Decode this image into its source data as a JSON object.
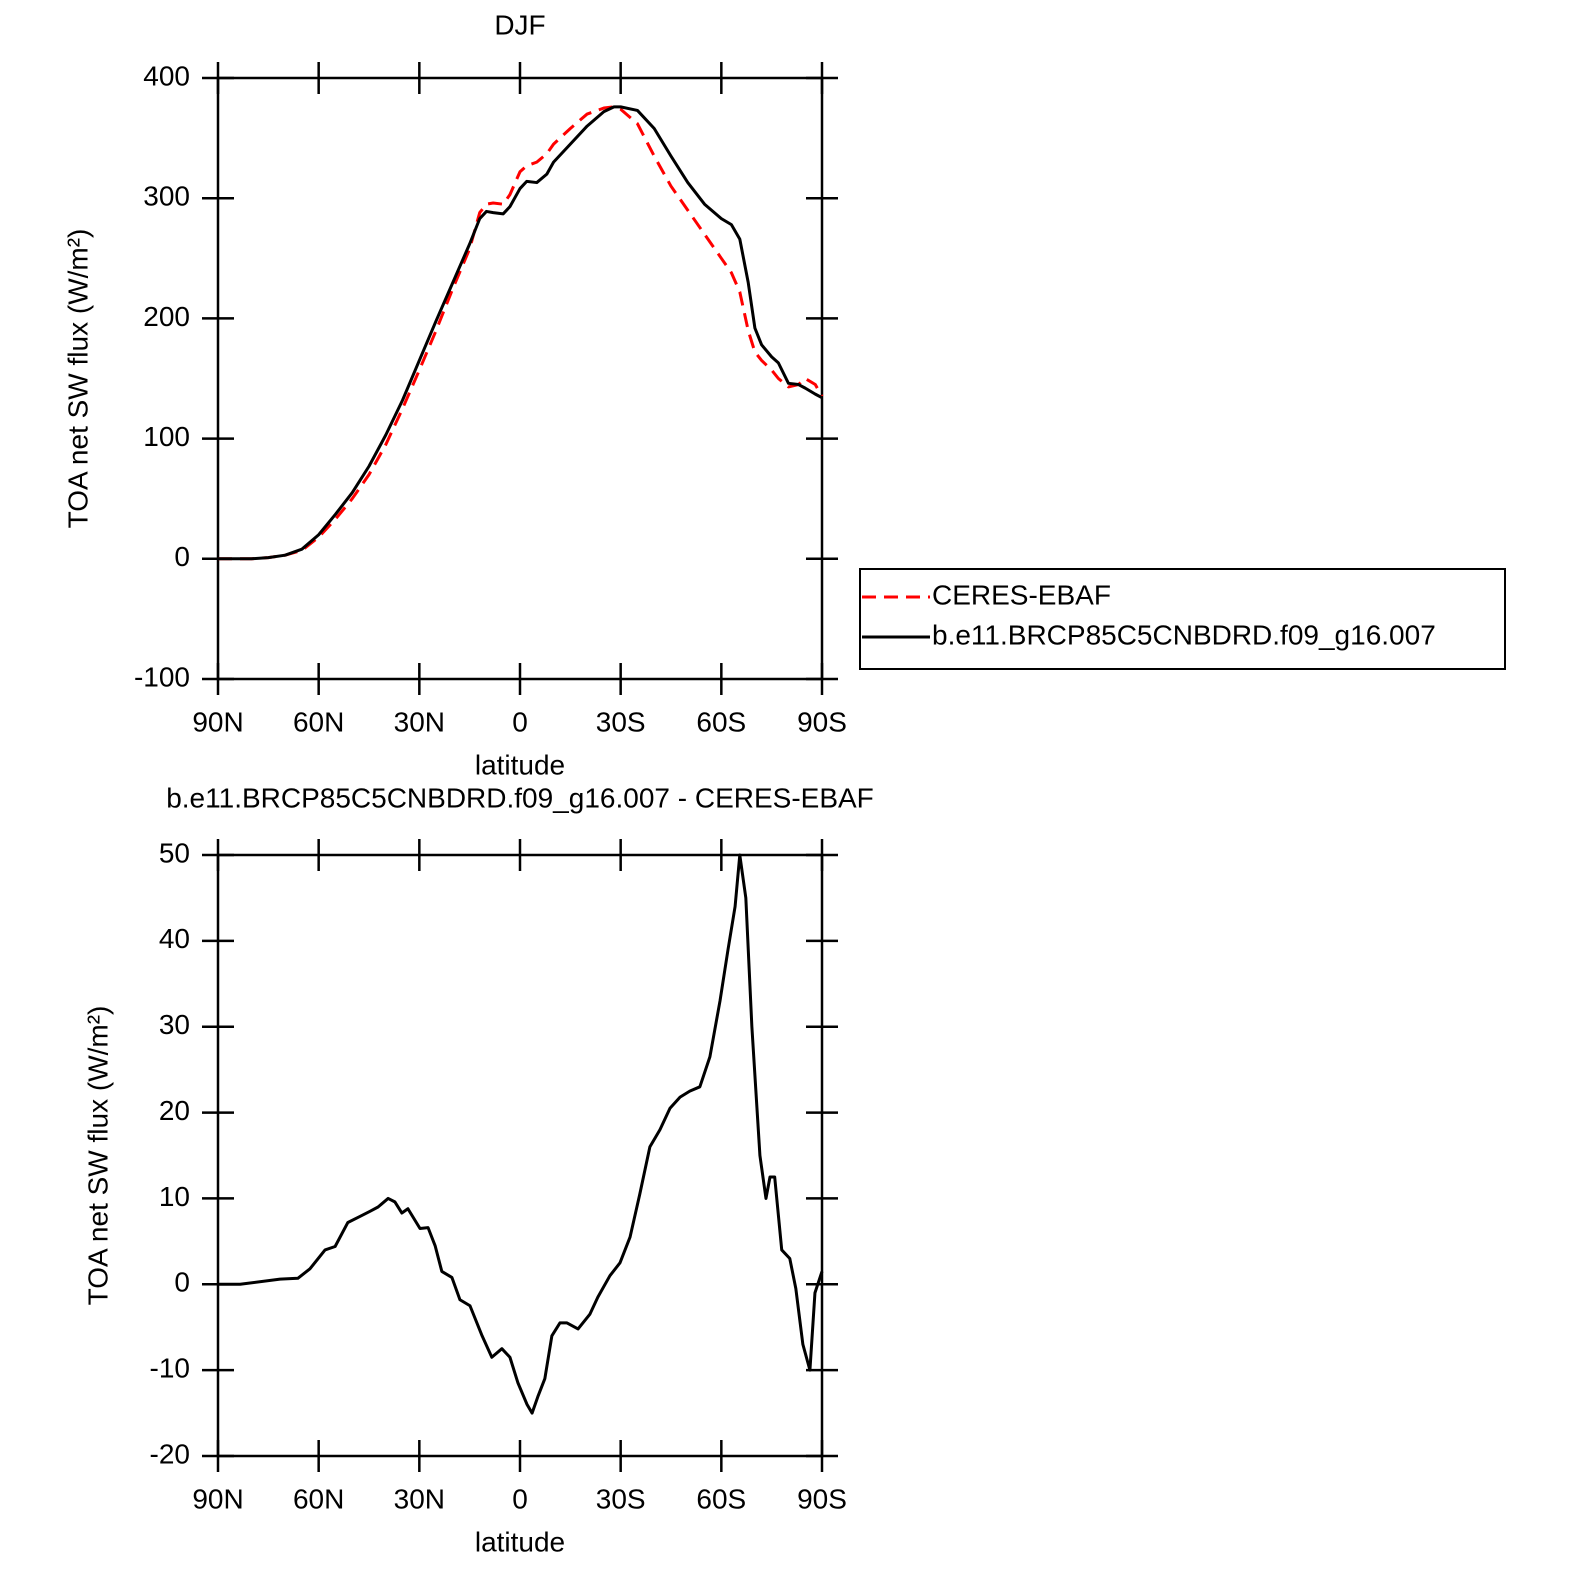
{
  "chart_data": [
    {
      "type": "line",
      "title": "DJF",
      "xlabel": "latitude",
      "ylabel": "TOA net SW flux (W/m²)",
      "x": [
        90,
        85,
        80,
        75,
        70,
        65,
        60,
        55,
        50,
        45,
        40,
        35,
        30,
        25,
        20,
        15,
        12,
        10,
        8,
        5,
        3,
        0,
        -2,
        -5,
        -8,
        -10,
        -15,
        -20,
        -25,
        -28,
        -30,
        -35,
        -40,
        -45,
        -50,
        -55,
        -60,
        -63,
        -65.5,
        -68,
        -70,
        -72,
        -75,
        -77,
        -80,
        -83,
        -85,
        -88,
        -90
      ],
      "series": [
        {
          "name": "CERES-EBAF",
          "color": "#ff0000",
          "dashed": true,
          "values": [
            0,
            0,
            0,
            1,
            3,
            7,
            18,
            33,
            50,
            70,
            95,
            125,
            157,
            190,
            225,
            258,
            288,
            295,
            296,
            295,
            303,
            322,
            327,
            330,
            337,
            345,
            358,
            370,
            375,
            376,
            374,
            362,
            335,
            310,
            290,
            270,
            250,
            238,
            222,
            190,
            172,
            165,
            157,
            150,
            143,
            145,
            150,
            145,
            135
          ]
        },
        {
          "name": "b.e11.BRCP85C5CNBDRD.f09_g16.007",
          "color": "#000000",
          "dashed": false,
          "values": [
            0,
            0,
            0,
            1,
            3,
            8,
            20,
            37,
            55,
            77,
            103,
            132,
            165,
            198,
            230,
            262,
            283,
            289,
            288,
            287,
            293,
            308,
            314,
            313,
            320,
            330,
            345,
            360,
            372,
            376,
            376,
            373,
            358,
            335,
            313,
            295,
            283,
            278,
            266,
            230,
            192,
            178,
            168,
            163,
            146,
            145,
            142,
            137,
            134
          ]
        }
      ],
      "xlim": [
        90,
        -90
      ],
      "xticks": [
        {
          "value": 90,
          "label": "90N"
        },
        {
          "value": 60,
          "label": "60N"
        },
        {
          "value": 30,
          "label": "30N"
        },
        0,
        {
          "value": -30,
          "label": "30S"
        },
        {
          "value": -60,
          "label": "60S"
        },
        {
          "value": -90,
          "label": "90S"
        }
      ],
      "ylim": [
        -100,
        400
      ],
      "yticks": [
        -100,
        0,
        100,
        200,
        300,
        400
      ],
      "legend": "right"
    },
    {
      "type": "line",
      "title": "b.e11.BRCP85C5CNBDRD.f09_g16.007 - CERES-EBAF",
      "xlabel": "latitude",
      "ylabel": "TOA net SW flux (W/m²)",
      "x": [
        90,
        83.4,
        71.5,
        66.2,
        62.6,
        58.1,
        55.1,
        51.3,
        47.7,
        44.7,
        42.3,
        39.3,
        37.3,
        35.2,
        33.4,
        29.8,
        27.4,
        25.3,
        23.3,
        20.3,
        17.9,
        14.9,
        11.3,
        8.4,
        5.4,
        3,
        0.6,
        -2.1,
        -3.6,
        -5.4,
        -7.4,
        -9.5,
        -11.9,
        -14,
        -17.3,
        -20.8,
        -23.2,
        -26.8,
        -29.8,
        -32.8,
        -35.7,
        -38.7,
        -41.7,
        -44.7,
        -47.7,
        -50.6,
        -53.6,
        -56.6,
        -59.6,
        -62,
        -64.1,
        -65.5,
        -67.3,
        -69.1,
        -71.5,
        -73.3,
        -74.5,
        -75.9,
        -78,
        -80.4,
        -82.2,
        -84.3,
        -86.4,
        -87.9,
        -90
      ],
      "series": [
        {
          "color": "#000000",
          "dashed": false,
          "values": [
            0,
            0,
            0.6,
            0.7,
            1.8,
            4,
            4.4,
            7.2,
            7.9,
            8.5,
            9,
            10,
            9.6,
            8.3,
            8.8,
            6.5,
            6.6,
            4.5,
            1.5,
            0.8,
            -1.8,
            -2.5,
            -6,
            -8.5,
            -7.5,
            -8.5,
            -11.5,
            -14,
            -15,
            -13,
            -11,
            -6,
            -4.5,
            -4.5,
            -5.2,
            -3.5,
            -1.5,
            1,
            2.5,
            5.5,
            10.5,
            16,
            18,
            20.5,
            21.8,
            22.5,
            23,
            26.5,
            33,
            39,
            44,
            50,
            45,
            30,
            15,
            10,
            12.5,
            12.5,
            4,
            3,
            -0.5,
            -7,
            -10,
            -1,
            1.5
          ]
        }
      ],
      "xlim": [
        90,
        -90
      ],
      "xticks": [
        {
          "value": 90,
          "label": "90N"
        },
        {
          "value": 60,
          "label": "60N"
        },
        {
          "value": 30,
          "label": "30N"
        },
        0,
        {
          "value": -30,
          "label": "30S"
        },
        {
          "value": -60,
          "label": "60S"
        },
        {
          "value": -90,
          "label": "90S"
        }
      ],
      "ylim": [
        -20,
        50
      ],
      "yticks": [
        -20,
        -10,
        0,
        10,
        20,
        30,
        40,
        50
      ]
    }
  ]
}
